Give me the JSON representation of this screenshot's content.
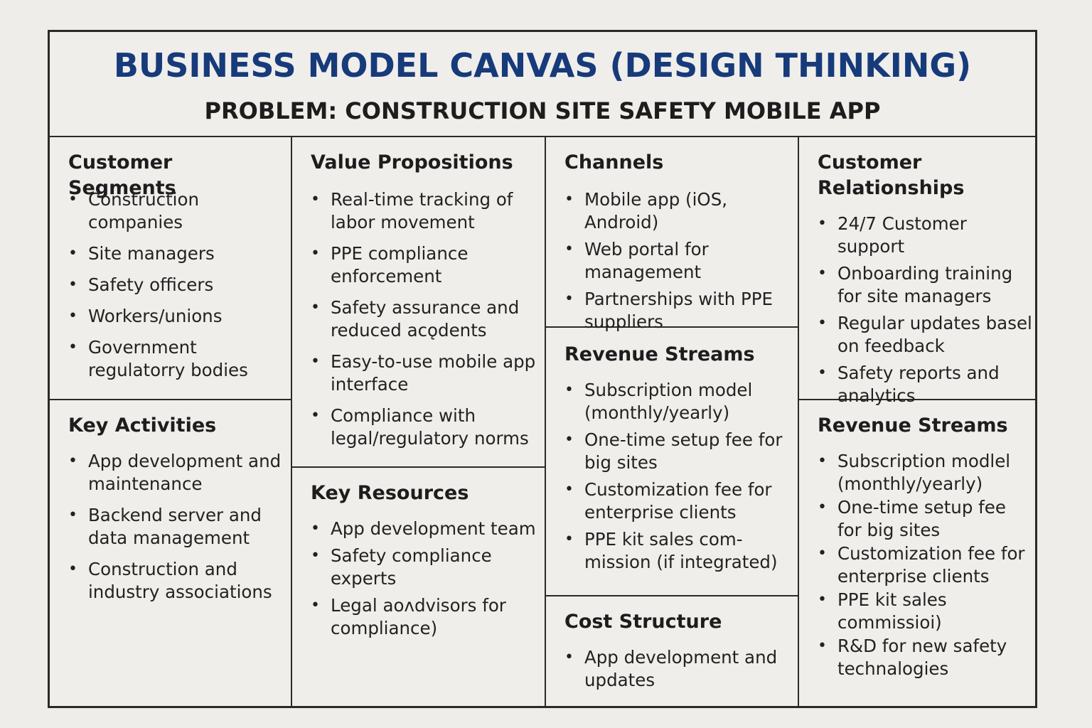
{
  "header": {
    "title": "BUSINESS MODEL CANVAS (DESIGN THINKING)",
    "subtitle": "PROBLEM: CONSTRUCTION SITE SAFETY MOBILE APP"
  },
  "colors": {
    "title": "#173a7a",
    "border": "#2a2a2a",
    "background": "#eeedea"
  },
  "customer_segments": {
    "title": "Customer Segments",
    "items": [
      "Construction companies",
      "Site managers",
      "Safety officers",
      "Workers/unions",
      "Government regulatorry bodies"
    ]
  },
  "value_propositions": {
    "title": "Value Propositions",
    "items": [
      "Real-time tracking of labor movement",
      "PPE compliance enforcement",
      "Safety assurance and reduced acǫdents",
      "Easy-to-use mobile app interface",
      "Compliance with legal/regulatory  norms"
    ]
  },
  "channels": {
    "title": "Channels",
    "items": [
      "Mobile app (iOS, Android)",
      "Web portal for management",
      "Partnerships with PPE suppliers"
    ]
  },
  "customer_relationships": {
    "title": "Customer Relationships",
    "items": [
      "24/7 Customer support",
      "Onboarding training for site managers",
      "Regular updates basel on feedback",
      "Safety reports and analytics"
    ]
  },
  "key_activities": {
    "title": "Key Activities",
    "items": [
      "App development and maintenance",
      "Backend server and data management",
      "Construction and industry associations"
    ]
  },
  "key_resources": {
    "title": "Key Resources",
    "items": [
      "App development team",
      "Safety compliance experts",
      "Legal aoᴧdvisors for compliance)"
    ]
  },
  "revenue_streams_center": {
    "title": "Revenue Streams",
    "items": [
      "Subscription model (monthly/yearly)",
      "One-time setup fee for big sites",
      "Customization fee for enterprise clients",
      "PPE kit sales com-mission (if integrated)"
    ]
  },
  "cost_structure": {
    "title": "Cost Structure",
    "items": [
      "App development and updates"
    ]
  },
  "revenue_streams_right": {
    "title": "Revenue Streams",
    "items": [
      "Subscription modlel (monthly/yearly)",
      "One-time setup fee for big sites",
      "Customization fee for enterprise clients",
      "PPE kit sales commissioi)",
      "R&D for new safety technalogies"
    ]
  }
}
